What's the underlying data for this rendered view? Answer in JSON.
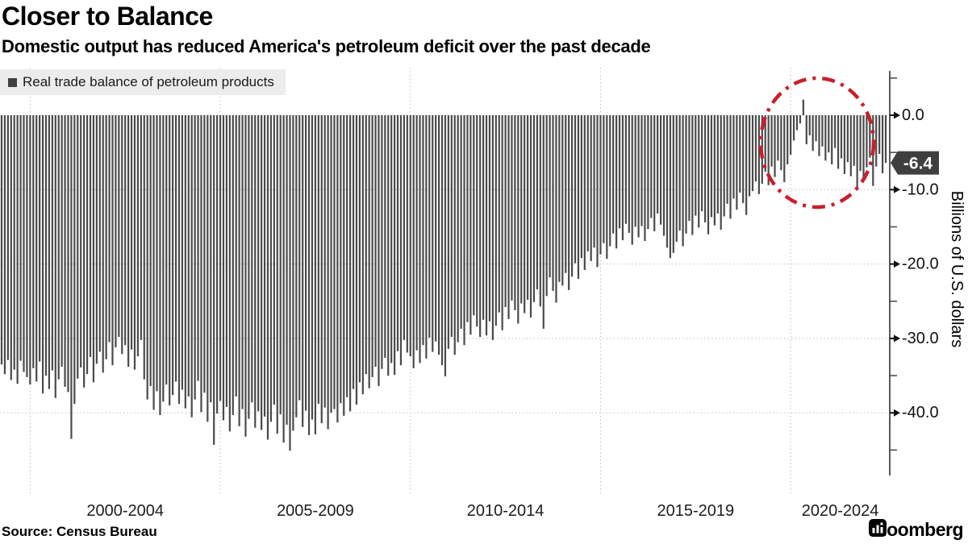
{
  "header": {
    "title": "Closer to Balance",
    "subtitle": "Domestic output has reduced America's petroleum deficit over the past decade"
  },
  "legend": {
    "label": "Real trade balance of petroleum products",
    "swatch_color": "#3f3f3f"
  },
  "source": "Source: Census Bureau",
  "branding": {
    "wordmark": "Bloomberg"
  },
  "annotations": {
    "last_value_badge": {
      "text": "-6.4",
      "bg_color": "#3f3f3f",
      "text_color": "#ffffff"
    },
    "highlight_circle": {
      "color": "#c8202d",
      "style": "dash-dot"
    }
  },
  "chart_data": {
    "type": "bar",
    "title": "Closer to Balance",
    "ylabel": "Billions of U.S. dollars",
    "unit": "billions of U.S. dollars",
    "frequency": "monthly",
    "start_month": "1999-04",
    "bar_color": "#4a4a4a",
    "grid_color": "#c3c3c3",
    "axis_color": "#5a5a5a",
    "ylim": [
      -48.5,
      6
    ],
    "yticks_major": [
      0,
      -10,
      -20,
      -30,
      -40
    ],
    "ytick_labels": [
      "0.0",
      "-10.0",
      "-20.0",
      "-30.0",
      "-40.0"
    ],
    "yticks_minor": [
      5,
      -5,
      -15,
      -25,
      -35,
      -45
    ],
    "x_gridline_years": [
      2000,
      2005,
      2010,
      2015,
      2020
    ],
    "x_period_labels": [
      "2000-2004",
      "2005-2009",
      "2010-2014",
      "2015-2019",
      "2020-2024"
    ],
    "last_value": -6.4,
    "values": [
      -33.5,
      -34.8,
      -32.9,
      -35.6,
      -34.2,
      -36.1,
      -33.0,
      -34.5,
      -35.2,
      -36.2,
      -34.0,
      -35.8,
      -33.1,
      -37.4,
      -35.0,
      -36.8,
      -34.3,
      -38.0,
      -35.5,
      -33.8,
      -36.5,
      -37.2,
      -43.5,
      -38.8,
      -35.4,
      -33.9,
      -36.6,
      -34.8,
      -32.5,
      -35.9,
      -33.4,
      -31.8,
      -34.6,
      -32.8,
      -30.5,
      -33.6,
      -31.2,
      -29.8,
      -32.1,
      -30.9,
      -33.8,
      -31.5,
      -34.2,
      -32.4,
      -30.2,
      -35.5,
      -38.2,
      -36.4,
      -39.6,
      -37.1,
      -40.3,
      -38.5,
      -36.2,
      -39.0,
      -37.6,
      -35.8,
      -38.8,
      -36.9,
      -39.4,
      -37.8,
      -40.6,
      -38.2,
      -35.7,
      -39.9,
      -37.3,
      -41.2,
      -38.6,
      -44.3,
      -40.1,
      -38.4,
      -41.0,
      -39.2,
      -42.5,
      -40.3,
      -37.8,
      -41.8,
      -39.5,
      -43.2,
      -40.8,
      -38.6,
      -42.0,
      -39.8,
      -42.3,
      -40.5,
      -43.6,
      -41.2,
      -38.9,
      -42.8,
      -40.2,
      -44.0,
      -41.6,
      -45.1,
      -42.4,
      -40.6,
      -38.3,
      -41.9,
      -39.7,
      -43.0,
      -40.9,
      -42.9,
      -38.8,
      -41.4,
      -39.3,
      -42.2,
      -40.0,
      -39.5,
      -41.3,
      -38.7,
      -40.4,
      -37.9,
      -39.8,
      -36.8,
      -38.9,
      -35.9,
      -37.5,
      -34.8,
      -36.7,
      -35.2,
      -33.8,
      -36.4,
      -34.1,
      -32.6,
      -35.0,
      -33.3,
      -34.9,
      -31.7,
      -33.6,
      -30.2,
      -31.9,
      -32.4,
      -34.0,
      -31.6,
      -33.3,
      -30.9,
      -32.7,
      -29.9,
      -31.8,
      -30.4,
      -32.2,
      -33.6,
      -35.1,
      -31.4,
      -29.8,
      -32.2,
      -30.5,
      -28.7,
      -30.9,
      -27.8,
      -29.5,
      -26.9,
      -28.4,
      -29.8,
      -27.5,
      -29.6,
      -27.7,
      -30.2,
      -28.3,
      -26.5,
      -28.9,
      -25.8,
      -27.4,
      -24.9,
      -26.2,
      -28.0,
      -25.3,
      -26.6,
      -24.8,
      -27.2,
      -25.1,
      -23.4,
      -25.7,
      -28.7,
      -24.3,
      -21.8,
      -23.6,
      -25.2,
      -22.4,
      -22.9,
      -21.2,
      -23.5,
      -21.7,
      -19.9,
      -22.0,
      -19.2,
      -20.8,
      -18.3,
      -19.6,
      -17.8,
      -20.4,
      -18.7,
      -17.2,
      -19.3,
      -17.6,
      -15.9,
      -17.9,
      -15.2,
      -16.8,
      -14.6,
      -15.8,
      -17.4,
      -15.0,
      -16.4,
      -14.9,
      -16.9,
      -15.3,
      -13.8,
      -15.6,
      -13.2,
      -14.7,
      -16.2,
      -17.8,
      -19.2,
      -18.5,
      -17.0,
      -15.5,
      -17.6,
      -15.9,
      -14.2,
      -16.1,
      -13.5,
      -15.1,
      -12.9,
      -14.4,
      -16.0,
      -13.7,
      -14.8,
      -13.2,
      -15.4,
      -13.6,
      -11.9,
      -13.9,
      -11.2,
      -12.7,
      -10.4,
      -11.8,
      -13.4,
      -10.9,
      -10.2,
      -8.9,
      -10.6,
      -9.2,
      -7.6,
      -9.4,
      -6.9,
      -8.3,
      -6.1,
      -7.4,
      -9.0,
      -6.6,
      -5.3,
      -3.4,
      -2.0,
      -1.1,
      2.1,
      -3.9,
      -2.7,
      -4.8,
      -3.5,
      -5.5,
      -4.2,
      -6.1,
      -5.0,
      -6.6,
      -4.4,
      -7.2,
      -5.8,
      -7.9,
      -6.3,
      -8.2,
      -6.8,
      -10.0,
      -7.5,
      -8.6,
      -7.0,
      -5.7,
      -9.5,
      -6.9,
      -5.2,
      -7.8,
      -6.4
    ]
  }
}
